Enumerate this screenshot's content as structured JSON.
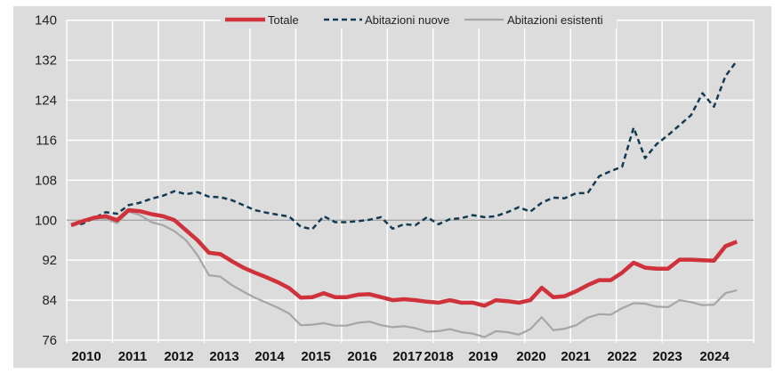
{
  "chart_data": {
    "type": "line",
    "title": "",
    "xlabel": "",
    "ylabel": "",
    "ylim": [
      76,
      140
    ],
    "yticks": [
      76,
      84,
      92,
      100,
      108,
      116,
      124,
      132,
      140
    ],
    "reference_line": 100,
    "grid": true,
    "legend_position": "top",
    "x_tick_labels": [
      "2010",
      "2011",
      "2012",
      "2013",
      "2014",
      "2015",
      "2016",
      "2017",
      "2018",
      "2019",
      "2020",
      "2021",
      "2022",
      "2023",
      "2024"
    ],
    "frequency": "quarterly",
    "series": [
      {
        "name": "Totale",
        "color": "#d0323c",
        "style": "solid-thick",
        "values": [
          99.0,
          99.8,
          100.5,
          100.8,
          100.0,
          102.0,
          101.8,
          101.2,
          100.8,
          100.0,
          98.0,
          96.0,
          93.5,
          93.2,
          91.8,
          90.5,
          89.5,
          88.6,
          87.6,
          86.4,
          84.5,
          84.6,
          85.4,
          84.6,
          84.6,
          85.1,
          85.2,
          84.6,
          84.0,
          84.2,
          84.0,
          83.7,
          83.5,
          84.0,
          83.5,
          83.5,
          82.9,
          84.0,
          83.8,
          83.5,
          84.0,
          86.5,
          84.6,
          84.8,
          85.8,
          87.0,
          88.0,
          88.0,
          89.5,
          91.5,
          90.5,
          90.3,
          90.3,
          92.1,
          92.1,
          92.0,
          91.9,
          94.8,
          95.7
        ]
      },
      {
        "name": "Abitazioni nuove",
        "color": "#123a52",
        "style": "dashed",
        "values": [
          99.0,
          99.3,
          100.4,
          101.6,
          101.3,
          103.0,
          103.5,
          104.3,
          104.9,
          105.8,
          105.2,
          105.6,
          104.7,
          104.6,
          104.0,
          103.0,
          102.0,
          101.5,
          101.1,
          100.7,
          98.7,
          98.2,
          100.8,
          99.6,
          99.6,
          99.8,
          100.1,
          100.6,
          98.3,
          99.2,
          99.0,
          100.6,
          99.2,
          100.2,
          100.4,
          101.0,
          100.6,
          100.8,
          101.6,
          102.6,
          101.7,
          103.5,
          104.5,
          104.4,
          105.4,
          105.4,
          108.8,
          109.8,
          110.7,
          118.5,
          112.4,
          115.2,
          117.0,
          119.0,
          121.0,
          125.4,
          122.7,
          128.8,
          131.9
        ]
      },
      {
        "name": "Abitazioni esistenti",
        "color": "#a6a6a6",
        "style": "solid-thin",
        "values": [
          99.0,
          99.8,
          100.6,
          100.3,
          99.4,
          101.7,
          101.0,
          99.6,
          99.0,
          97.8,
          96.0,
          93.0,
          89.0,
          88.7,
          87.0,
          85.7,
          84.5,
          83.5,
          82.5,
          81.3,
          79.0,
          79.1,
          79.4,
          78.9,
          78.9,
          79.5,
          79.7,
          79.0,
          78.6,
          78.8,
          78.4,
          77.7,
          77.8,
          78.2,
          77.6,
          77.3,
          76.6,
          77.8,
          77.6,
          77.1,
          78.2,
          80.6,
          78.0,
          78.3,
          79.0,
          80.5,
          81.2,
          81.1,
          82.4,
          83.4,
          83.3,
          82.7,
          82.6,
          84.0,
          83.6,
          83.0,
          83.1,
          85.4,
          86.0
        ]
      }
    ]
  }
}
